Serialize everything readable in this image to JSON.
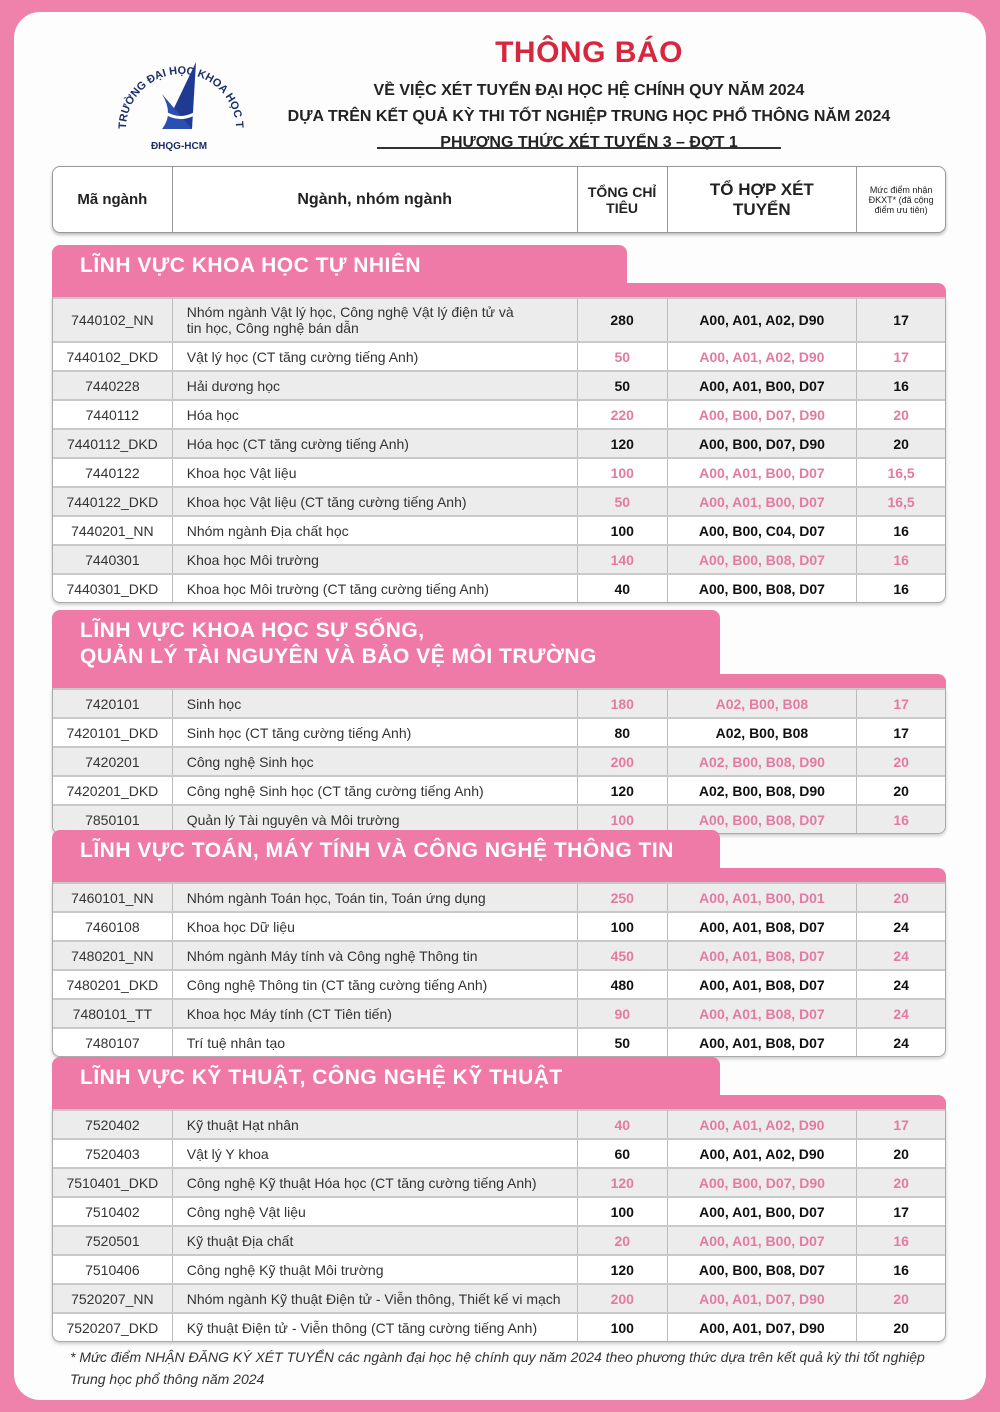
{
  "logo": {
    "text": "TRƯỜNG ĐẠI HỌC KHOA HỌC TỰ NHIÊN",
    "sub": "ĐHQG-HCM",
    "mark": "KHTN"
  },
  "header": {
    "title": "THÔNG BÁO",
    "line1": "VỀ VIỆC XÉT TUYỂN ĐẠI HỌC HỆ CHÍNH QUY NĂM 2024",
    "line2": "DỰA TRÊN KẾT QUẢ KỲ THI TỐT NGHIỆP TRUNG HỌC PHỔ THÔNG NĂM 2024",
    "line3": "PHƯƠNG THỨC XÉT TUYỂN 3 – ĐỢT 1"
  },
  "columns": {
    "code": "Mã ngành",
    "name": "Ngành, nhóm ngành",
    "quota": "TỔNG CHỈ TIÊU",
    "combo": "TỔ HỢP XÉT TUYỂN",
    "score": "Mức điểm nhận ĐKXT* (đã cộng điểm ưu tiên)"
  },
  "colors": {
    "accent": "#ef7aa8",
    "title": "#d7263d",
    "highlight_text": "#e47aa2"
  },
  "sections": [
    {
      "title": "LĨNH VỰC KHOA HỌC TỰ NHIÊN",
      "rows": [
        {
          "code": "7440102_NN",
          "name": "Nhóm ngành Vật lý học, Công nghệ Vật lý điện tử và tin học, Công nghệ bán dẫn",
          "quota": "280",
          "combo": "A00, A01, A02, D90",
          "score": "17",
          "hl": false
        },
        {
          "code": "7440102_DKD",
          "name": "Vật lý học (CT tăng cường tiếng Anh)",
          "quota": "50",
          "combo": "A00, A01, A02, D90",
          "score": "17",
          "hl": true
        },
        {
          "code": "7440228",
          "name": "Hải dương học",
          "quota": "50",
          "combo": "A00, A01, B00, D07",
          "score": "16",
          "hl": false
        },
        {
          "code": "7440112",
          "name": "Hóa học",
          "quota": "220",
          "combo": "A00, B00, D07, D90",
          "score": "20",
          "hl": true
        },
        {
          "code": "7440112_DKD",
          "name": "Hóa học (CT tăng cường tiếng Anh)",
          "quota": "120",
          "combo": "A00, B00, D07, D90",
          "score": "20",
          "hl": false
        },
        {
          "code": "7440122",
          "name": "Khoa học Vật liệu",
          "quota": "100",
          "combo": "A00, A01, B00, D07",
          "score": "16,5",
          "hl": true
        },
        {
          "code": "7440122_DKD",
          "name": "Khoa học Vật liệu (CT tăng cường tiếng Anh)",
          "quota": "50",
          "combo": "A00, A01, B00, D07",
          "score": "16,5",
          "hl": true
        },
        {
          "code": "7440201_NN",
          "name": "Nhóm ngành Địa chất học",
          "quota": "100",
          "combo": "A00, B00, C04, D07",
          "score": "16",
          "hl": false
        },
        {
          "code": "7440301",
          "name": "Khoa học Môi trường",
          "quota": "140",
          "combo": "A00, B00, B08, D07",
          "score": "16",
          "hl": true
        },
        {
          "code": "7440301_DKD",
          "name": "Khoa học Môi trường (CT tăng cường tiếng Anh)",
          "quota": "40",
          "combo": "A00, B00, B08, D07",
          "score": "16",
          "hl": false
        }
      ]
    },
    {
      "title": "LĨNH VỰC KHOA HỌC SỰ SỐNG,",
      "title2": "QUẢN LÝ TÀI NGUYÊN VÀ BẢO VỆ MÔI TRƯỜNG",
      "rows": [
        {
          "code": "7420101",
          "name": "Sinh học",
          "quota": "180",
          "combo": "A02, B00, B08",
          "score": "17",
          "hl": true
        },
        {
          "code": "7420101_DKD",
          "name": "Sinh học (CT tăng cường tiếng Anh)",
          "quota": "80",
          "combo": "A02, B00, B08",
          "score": "17",
          "hl": false
        },
        {
          "code": "7420201",
          "name": "Công nghệ Sinh học",
          "quota": "200",
          "combo": "A02, B00, B08, D90",
          "score": "20",
          "hl": true
        },
        {
          "code": "7420201_DKD",
          "name": "Công nghệ Sinh học (CT tăng cường tiếng Anh)",
          "quota": "120",
          "combo": "A02, B00, B08, D90",
          "score": "20",
          "hl": false
        },
        {
          "code": "7850101",
          "name": "Quản lý Tài nguyên và Môi trường",
          "quota": "100",
          "combo": "A00, B00, B08, D07",
          "score": "16",
          "hl": true
        }
      ]
    },
    {
      "title": "LĨNH VỰC TOÁN, MÁY TÍNH VÀ CÔNG NGHỆ THÔNG TIN",
      "rows": [
        {
          "code": "7460101_NN",
          "name": "Nhóm ngành Toán học, Toán tin, Toán ứng dụng",
          "quota": "250",
          "combo": "A00, A01, B00, D01",
          "score": "20",
          "hl": true
        },
        {
          "code": "7460108",
          "name": "Khoa học Dữ liệu",
          "quota": "100",
          "combo": "A00, A01, B08, D07",
          "score": "24",
          "hl": false
        },
        {
          "code": "7480201_NN",
          "name": "Nhóm ngành Máy tính và Công nghệ Thông tin",
          "quota": "450",
          "combo": "A00, A01, B08, D07",
          "score": "24",
          "hl": true
        },
        {
          "code": "7480201_DKD",
          "name": "Công nghệ Thông tin (CT tăng cường tiếng Anh)",
          "quota": "480",
          "combo": "A00, A01, B08, D07",
          "score": "24",
          "hl": false
        },
        {
          "code": "7480101_TT",
          "name": "Khoa học Máy tính (CT Tiên tiến)",
          "quota": "90",
          "combo": "A00, A01, B08, D07",
          "score": "24",
          "hl": true
        },
        {
          "code": "7480107",
          "name": "Trí tuệ nhân tạo",
          "quota": "50",
          "combo": "A00, A01, B08, D07",
          "score": "24",
          "hl": false
        }
      ]
    },
    {
      "title": "LĨNH VỰC KỸ THUẬT, CÔNG NGHỆ KỸ THUẬT",
      "rows": [
        {
          "code": "7520402",
          "name": "Kỹ thuật Hạt nhân",
          "quota": "40",
          "combo": "A00, A01, A02, D90",
          "score": "17",
          "hl": true
        },
        {
          "code": "7520403",
          "name": "Vật lý Y khoa",
          "quota": "60",
          "combo": "A00, A01, A02, D90",
          "score": "20",
          "hl": false
        },
        {
          "code": "7510401_DKD",
          "name": "Công nghệ Kỹ thuật Hóa học (CT tăng cường tiếng Anh)",
          "quota": "120",
          "combo": "A00, B00, D07, D90",
          "score": "20",
          "hl": true
        },
        {
          "code": "7510402",
          "name": "Công nghệ Vật liệu",
          "quota": "100",
          "combo": "A00, A01, B00, D07",
          "score": "17",
          "hl": false
        },
        {
          "code": "7520501",
          "name": "Kỹ thuật Địa chất",
          "quota": "20",
          "combo": "A00, A01, B00, D07",
          "score": "16",
          "hl": true
        },
        {
          "code": "7510406",
          "name": "Công nghệ Kỹ thuật Môi trường",
          "quota": "120",
          "combo": "A00, B00, B08, D07",
          "score": "16",
          "hl": false
        },
        {
          "code": "7520207_NN",
          "name": "Nhóm ngành Kỹ thuật Điện tử - Viễn thông, Thiết kế vi mạch",
          "quota": "200",
          "combo": "A00, A01, D07, D90",
          "score": "20",
          "hl": true
        },
        {
          "code": "7520207_DKD",
          "name": "Kỹ thuật Điện tử - Viễn thông (CT tăng cường tiếng Anh)",
          "quota": "100",
          "combo": "A00, A01, D07, D90",
          "score": "20",
          "hl": false
        }
      ]
    }
  ],
  "footnote": "* Mức điểm NHẬN ĐĂNG KÝ XÉT TUYỂN các ngành đại học hệ chính quy năm 2024 theo phương thức dựa trên kết quả kỳ thi tốt nghiệp Trung học phổ thông năm 2024"
}
